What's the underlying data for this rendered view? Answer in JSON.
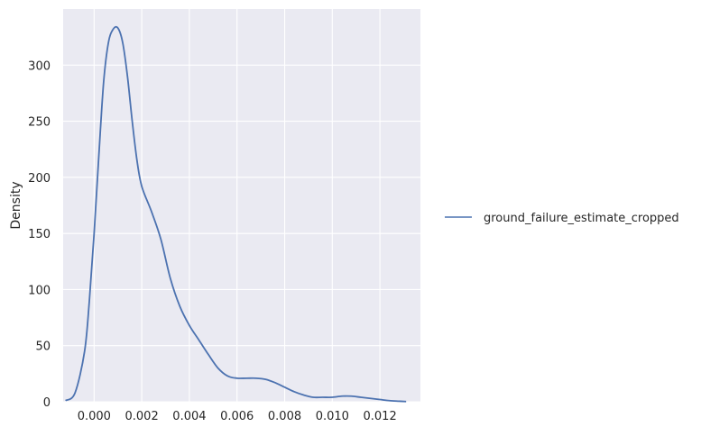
{
  "chart_data": {
    "type": "line",
    "title": "",
    "xlabel": "",
    "ylabel": "Density",
    "xlim": [
      -0.0013,
      0.0137
    ],
    "ylim": [
      0,
      350
    ],
    "xticks": [
      0.0,
      0.002,
      0.004,
      0.006,
      0.008,
      0.01,
      0.012
    ],
    "xtick_labels": [
      "0.000",
      "0.002",
      "0.004",
      "0.006",
      "0.008",
      "0.010",
      "0.012"
    ],
    "yticks": [
      0,
      50,
      100,
      150,
      200,
      250,
      300
    ],
    "ytick_labels": [
      "0",
      "50",
      "100",
      "150",
      "200",
      "250",
      "300"
    ],
    "grid": true,
    "legend_position": "right",
    "series": [
      {
        "name": "ground_failure_estimate_cropped",
        "color": "#4c72b0",
        "x": [
          -0.0012,
          -0.0008,
          -0.0004,
          -0.0002,
          0.0,
          0.0002,
          0.0004,
          0.0006,
          0.0008,
          0.001,
          0.0012,
          0.0014,
          0.0016,
          0.0018,
          0.002,
          0.0024,
          0.0028,
          0.0032,
          0.0036,
          0.004,
          0.0044,
          0.0048,
          0.0052,
          0.0056,
          0.006,
          0.0064,
          0.0068,
          0.0072,
          0.0076,
          0.008,
          0.0084,
          0.0088,
          0.0092,
          0.0096,
          0.01,
          0.0104,
          0.0108,
          0.0112,
          0.0116,
          0.012,
          0.0124,
          0.0128,
          0.0131
        ],
        "y": [
          1,
          8,
          45,
          90,
          150,
          220,
          285,
          320,
          332,
          333,
          320,
          290,
          250,
          215,
          192,
          170,
          145,
          110,
          85,
          68,
          55,
          42,
          30,
          23,
          21,
          21,
          21,
          20,
          17,
          13,
          9,
          6,
          4,
          4,
          4,
          5,
          5,
          4,
          3,
          2,
          1,
          0.5,
          0.2
        ]
      }
    ]
  }
}
